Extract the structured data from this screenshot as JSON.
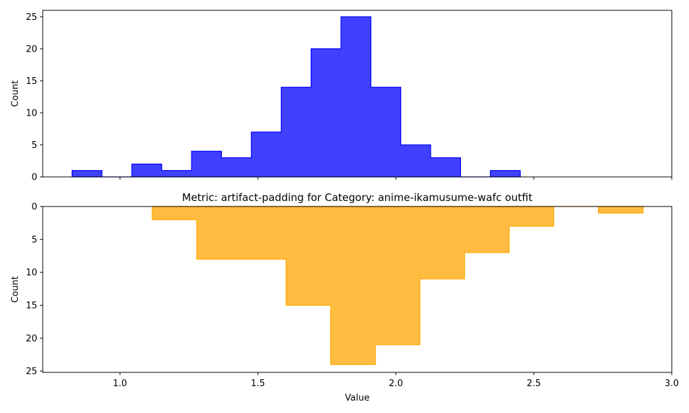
{
  "chart_data": [
    {
      "type": "histogram",
      "position": "top",
      "title": "",
      "xlabel": "",
      "ylabel": "Count",
      "xlim": [
        0.72,
        3.0
      ],
      "ylim": [
        0,
        26
      ],
      "xticks": [
        1.0,
        1.5,
        2.0,
        2.5,
        3.0
      ],
      "show_xtick_labels": false,
      "yticks": [
        0,
        5,
        10,
        15,
        20,
        25
      ],
      "inverted_y": false,
      "grid": false,
      "legend": "none",
      "color": "#0000ff",
      "bin_edges": [
        0.8264,
        0.9347,
        1.043,
        1.1513,
        1.2596,
        1.3679,
        1.4762,
        1.5845,
        1.6928,
        1.8011,
        1.9094,
        2.0177,
        2.126,
        2.2343,
        2.3426,
        2.4509
      ],
      "counts": [
        1,
        0,
        2,
        1,
        4,
        3,
        7,
        14,
        20,
        25,
        14,
        5,
        3,
        0,
        1
      ]
    },
    {
      "type": "histogram",
      "position": "bottom",
      "title": "Metric: artifact-padding for Category: anime-ikamusume-wafc outfit",
      "xlabel": "Value",
      "ylabel": "Count",
      "xlim": [
        0.72,
        3.0
      ],
      "ylim": [
        0,
        25.2
      ],
      "xticks": [
        1.0,
        1.5,
        2.0,
        2.5,
        3.0
      ],
      "show_xtick_labels": true,
      "yticks": [
        0,
        5,
        10,
        15,
        20,
        25
      ],
      "inverted_y": true,
      "grid": false,
      "legend": "none",
      "color": "#ffa500",
      "bin_edges": [
        1.117,
        1.2787,
        1.4404,
        1.6021,
        1.7638,
        1.9255,
        2.0872,
        2.2489,
        2.4106,
        2.5723,
        2.734,
        2.8957
      ],
      "counts": [
        2,
        8,
        8,
        15,
        24,
        21,
        11,
        7,
        3,
        0,
        1
      ]
    }
  ]
}
